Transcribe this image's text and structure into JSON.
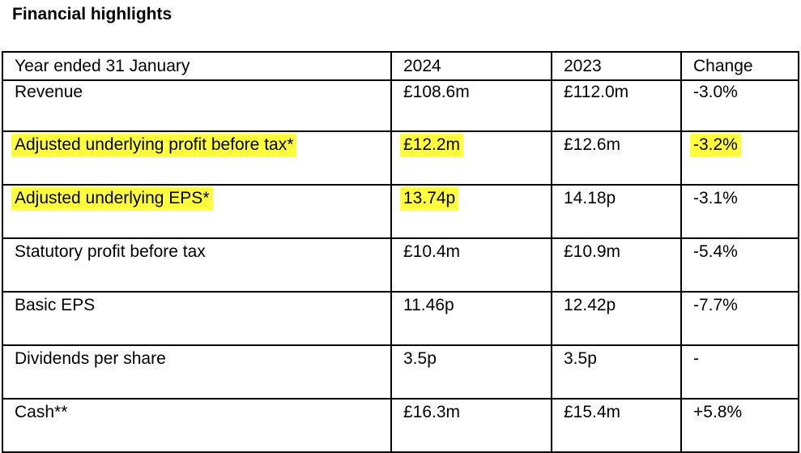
{
  "title": "Financial highlights",
  "colors": {
    "highlight": "#ffff3b",
    "border": "#000000"
  },
  "table": {
    "headers": [
      "Year ended 31 January",
      "2024",
      "2023",
      "Change"
    ],
    "rows": [
      {
        "label": "Revenue",
        "y2024": "£108.6m",
        "y2023": "£112.0m",
        "change": "-3.0%"
      },
      {
        "label": "Adjusted underlying profit before tax*",
        "y2024": "£12.2m",
        "y2023": "£12.6m",
        "change": "-3.2%"
      },
      {
        "label": "Adjusted underlying EPS*",
        "y2024": "13.74p",
        "y2023": "14.18p",
        "change": "-3.1%"
      },
      {
        "label": "Statutory profit before tax",
        "y2024": "£10.4m",
        "y2023": "£10.9m",
        "change": "-5.4%"
      },
      {
        "label": "Basic EPS",
        "y2024": "11.46p",
        "y2023": "12.42p",
        "change": "-7.7%"
      },
      {
        "label": "Dividends per share",
        "y2024": "3.5p",
        "y2023": "3.5p",
        "change": "-"
      },
      {
        "label": "Cash**",
        "y2024": "£16.3m",
        "y2023": "£15.4m",
        "change": "+5.8%"
      }
    ]
  }
}
